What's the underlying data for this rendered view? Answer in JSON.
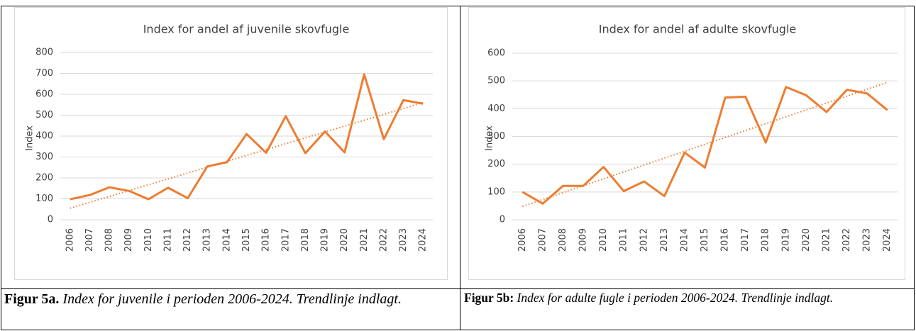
{
  "chart_data": [
    {
      "type": "line",
      "title": "Index for andel af juvenile skovfugle",
      "y_label": "Index",
      "categories": [
        "2006",
        "2007",
        "2008",
        "2009",
        "2010",
        "2011",
        "2012",
        "2013",
        "2014",
        "2015",
        "2016",
        "2017",
        "2018",
        "2019",
        "2020",
        "2021",
        "2022",
        "2023",
        "2024"
      ],
      "series": [
        {
          "color": "#ed7d31",
          "values": [
            98,
            118,
            155,
            138,
            98,
            153,
            103,
            255,
            275,
            410,
            320,
            495,
            318,
            422,
            322,
            695,
            385,
            572,
            555
          ]
        }
      ],
      "trend": [
        55,
        560
      ],
      "ylim": [
        0,
        800
      ],
      "yticks": [
        0,
        100,
        200,
        300,
        400,
        500,
        600,
        700,
        800
      ],
      "grid": true
    },
    {
      "type": "line",
      "title": "Index for andel af adulte skovfugle",
      "y_label": "Index",
      "categories": [
        "2006",
        "2007",
        "2008",
        "2009",
        "2010",
        "2011",
        "2012",
        "2013",
        "2014",
        "2015",
        "2016",
        "2017",
        "2018",
        "2019",
        "2020",
        "2021",
        "2022",
        "2023",
        "2024"
      ],
      "series": [
        {
          "color": "#ed7d31",
          "values": [
            100,
            58,
            122,
            122,
            190,
            103,
            138,
            85,
            242,
            188,
            440,
            443,
            278,
            478,
            448,
            388,
            468,
            455,
            395
          ]
        }
      ],
      "trend": [
        48,
        495
      ],
      "ylim": [
        0,
        600
      ],
      "yticks": [
        0,
        100,
        200,
        300,
        400,
        500,
        600
      ],
      "grid": true
    }
  ],
  "captions": [
    {
      "label": "Figur 5a.",
      "text": "Index for juvenile i perioden 2006-2024. Trendlinje indlagt."
    },
    {
      "label": "Figur 5b:",
      "text": "Index for adulte fugle i perioden 2006-2024. Trendlinje indlagt."
    }
  ]
}
